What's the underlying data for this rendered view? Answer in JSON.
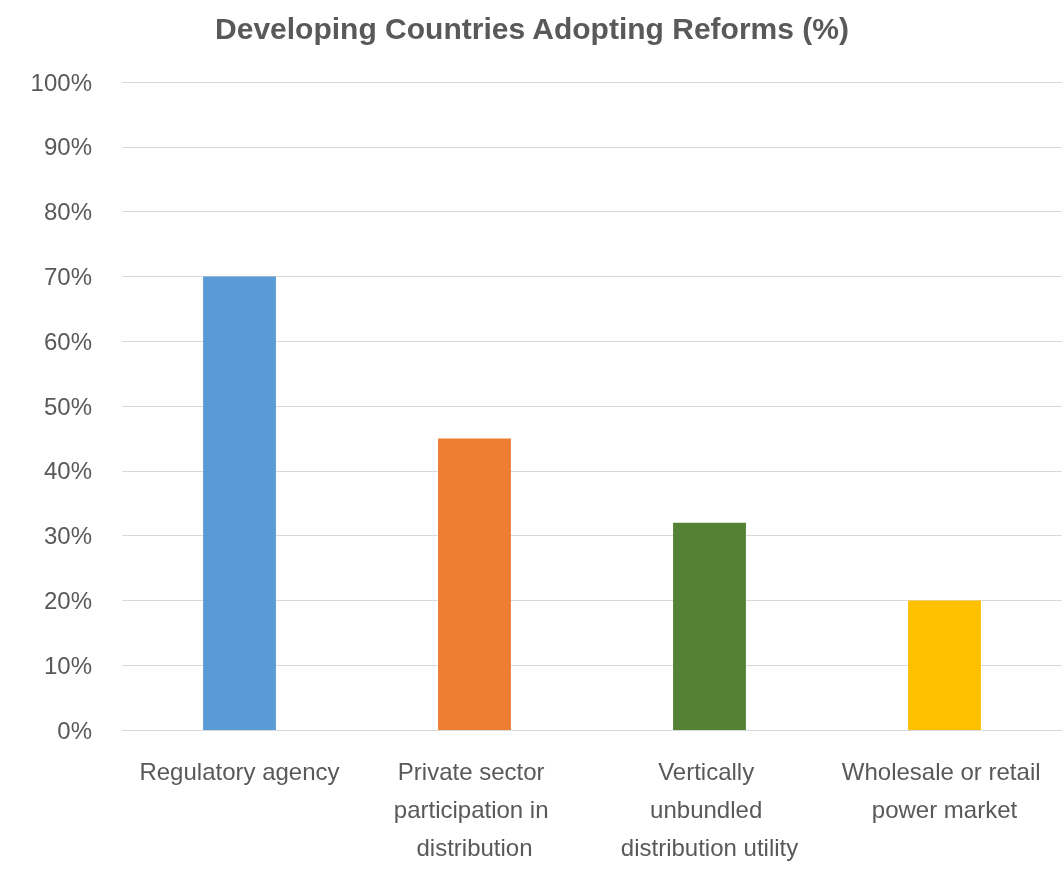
{
  "chart_data": {
    "type": "bar",
    "title": "Developing Countries Adopting Reforms (%)",
    "categories": [
      "Regulatory agency",
      "Private sector participation in distribution",
      "Vertically unbundled distribution utility",
      "Wholesale or retail power market"
    ],
    "values": [
      70,
      45,
      32,
      20
    ],
    "colors": [
      "#5b9bd5",
      "#ed7d31",
      "#548235",
      "#ffc000"
    ],
    "ylim": [
      0,
      100
    ],
    "yticks": [
      {
        "value": 0,
        "label": "0%"
      },
      {
        "value": 10,
        "label": "10%"
      },
      {
        "value": 20,
        "label": "20%"
      },
      {
        "value": 30,
        "label": "30%"
      },
      {
        "value": 40,
        "label": "40%"
      },
      {
        "value": 50,
        "label": "50%"
      },
      {
        "value": 60,
        "label": "60%"
      },
      {
        "value": 70,
        "label": "70%"
      },
      {
        "value": 80,
        "label": "80%"
      },
      {
        "value": 90,
        "label": "90%"
      },
      {
        "value": 100,
        "label": "100%"
      }
    ],
    "grid": "y"
  }
}
